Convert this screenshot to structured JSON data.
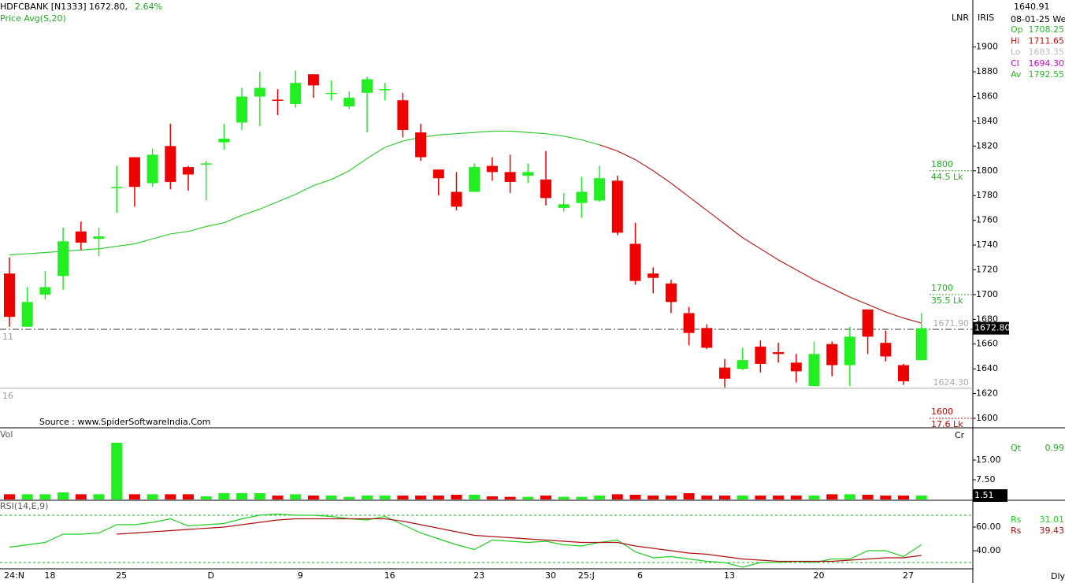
{
  "header": {
    "symbol": "HDFCBANK [N1333] 1672.80,",
    "change": "2.64%"
  },
  "toolbar": [
    "LNR",
    "IRIS"
  ],
  "info": {
    "price": "1640.91",
    "date": "08-01-25 We",
    "rows": [
      {
        "label": "Op",
        "value": "1708.25",
        "color": "#22bb22"
      },
      {
        "label": "Hi",
        "value": "1711.65",
        "color": "#bb1111"
      },
      {
        "label": "Lo",
        "value": "1683.35",
        "color": "#bbbbbb"
      },
      {
        "label": "Cl",
        "value": "1694.30",
        "color": "#cc00cc"
      },
      {
        "label": "Av",
        "value": "1792.55",
        "color": "#22bb22"
      }
    ]
  },
  "source": "Source : www.SpiderSoftwareIndia.Com",
  "interval": "Dly",
  "chart_data": [
    {
      "type": "candlestick",
      "categories": [
        "24:N",
        null,
        "18",
        null,
        null,
        null,
        "25",
        null,
        null,
        null,
        null,
        "D",
        null,
        null,
        null,
        null,
        "9",
        null,
        null,
        null,
        null,
        "16",
        null,
        null,
        null,
        null,
        "23",
        null,
        null,
        null,
        "30",
        null,
        "25:J",
        null,
        null,
        "6",
        null,
        null,
        null,
        null,
        "13",
        null,
        null,
        null,
        null,
        "20",
        null,
        null,
        null,
        null,
        "27",
        null
      ],
      "open": [
        1717,
        1674,
        1700,
        1715,
        1751,
        1745,
        1786,
        1811,
        1790,
        1820,
        1803,
        1805,
        1823,
        1839,
        1860,
        1857.5,
        1854,
        1878,
        1862,
        1852,
        1863,
        1865.6,
        1857,
        1831,
        1801,
        1783,
        1783,
        1804,
        1799,
        1796,
        1793,
        1770,
        1774,
        1776,
        1792,
        1741,
        1717,
        1709,
        1685,
        1673,
        1641,
        1640,
        1658,
        1653.5,
        1645,
        1626,
        1660,
        1643,
        1688,
        1661,
        1643,
        1647
      ],
      "high": [
        1730,
        1706,
        1719,
        1754,
        1759,
        1754,
        1804,
        1811,
        1818,
        1838,
        1804,
        1808,
        1838,
        1867,
        1880,
        1866,
        1881,
        1878,
        1873,
        1864,
        1876,
        1871,
        1863,
        1838,
        1801,
        1799,
        1806,
        1811,
        1813,
        1806,
        1816,
        1782,
        1795,
        1804,
        1796,
        1758,
        1722,
        1712,
        1690,
        1676,
        1648,
        1657,
        1663,
        1661,
        1652,
        1662,
        1662,
        1674,
        1688,
        1671,
        1644,
        1685
      ],
      "low": [
        1674,
        1674,
        1696,
        1704,
        1736,
        1731,
        1766,
        1771,
        1787,
        1785,
        1784,
        1776,
        1817,
        1833,
        1836,
        1845,
        1851,
        1859,
        1857,
        1850,
        1831,
        1857,
        1827,
        1808,
        1780,
        1768,
        1783,
        1792,
        1782,
        1790,
        1772,
        1767,
        1762,
        1775,
        1748,
        1708,
        1701,
        1685,
        1659,
        1656,
        1625,
        1639,
        1637,
        1645,
        1629,
        1626,
        1634,
        1626,
        1652,
        1646,
        1627,
        1647
      ],
      "close": [
        1682,
        1694,
        1706,
        1743,
        1742,
        1747,
        1787,
        1787,
        1813,
        1791,
        1797,
        1806,
        1826,
        1860,
        1867,
        1857,
        1871,
        1869,
        1863,
        1859,
        1874,
        1866,
        1833,
        1811,
        1794,
        1771,
        1803,
        1799,
        1791,
        1799,
        1778,
        1773,
        1783,
        1794,
        1750,
        1711,
        1713.5,
        1694,
        1669,
        1657,
        1632,
        1647,
        1644,
        1652,
        1638,
        1652,
        1643,
        1666,
        1666,
        1650,
        1630,
        1672.8
      ],
      "up_color": "#22ee22",
      "down_color": "#ee0000",
      "lines": [
        {
          "name": "Price  Avg(S,20)",
          "values": [
            1732,
            1733,
            1734,
            1735,
            1736,
            1737,
            1739,
            1741,
            1745,
            1749,
            1751,
            1755,
            1758,
            1764,
            1769,
            1775,
            1781,
            1788,
            1793,
            1800,
            1810,
            1819,
            1824,
            1827,
            1829,
            1830,
            1831,
            1832,
            1832,
            1831,
            1830,
            1828,
            1825,
            1821,
            1816,
            1809,
            1800,
            1790,
            1779,
            1768,
            1757,
            1746,
            1737,
            1728,
            1720,
            1712,
            1705,
            1698,
            1692,
            1686,
            1681,
            1677
          ],
          "colors": [
            "#33cc33",
            "#33cc33",
            "#33cc33",
            "#33cc33",
            "#33cc33",
            "#33cc33",
            "#33cc33",
            "#33cc33",
            "#33cc33",
            "#33cc33",
            "#33cc33",
            "#33cc33",
            "#33cc33",
            "#33cc33",
            "#33cc33",
            "#33cc33",
            "#33cc33",
            "#33cc33",
            "#33cc33",
            "#33cc33",
            "#33cc33",
            "#33cc33",
            "#33cc33",
            "#33cc33",
            "#33cc33",
            "#33cc33",
            "#33cc33",
            "#33cc33",
            "#33cc33",
            "#33cc33",
            "#33cc33",
            "#33cc33",
            "#33cc33",
            "#33cc33",
            "#bb2222",
            "#bb2222",
            "#bb2222",
            "#bb2222",
            "#bb2222",
            "#bb2222",
            "#bb2222",
            "#bb2222",
            "#bb2222",
            "#bb2222",
            "#bb2222",
            "#bb2222",
            "#bb2222",
            "#bb2222",
            "#bb2222",
            "#bb2222",
            "#bb2222",
            "#bb2222"
          ]
        }
      ],
      "ylim": [
        1593,
        1938
      ],
      "yticks": [
        1600,
        1620,
        1640,
        1660,
        1680,
        1700,
        1720,
        1740,
        1760,
        1780,
        1800,
        1820,
        1840,
        1860,
        1880,
        1900
      ],
      "levels": [
        {
          "value": 1800,
          "volume": "44.5 Lk",
          "color": "#22aa22"
        },
        {
          "value": 1700,
          "volume": "35.5 Lk",
          "color": "#22aa22"
        },
        {
          "value": 1600,
          "volume": "17.6 Lk",
          "color": "#cc0000"
        }
      ],
      "markers": [
        {
          "value": 1671.9,
          "label": "1671.90",
          "line_style": "dashdot"
        },
        {
          "value": 1624.3,
          "label": "1624.30",
          "line_style": "solid"
        }
      ],
      "last": {
        "value": 1672.8,
        "label": "1672.80"
      },
      "side_labels": [
        11,
        16
      ]
    },
    {
      "type": "bar",
      "label": "Vol",
      "unit": "Cr",
      "values": [
        2,
        2,
        2,
        2.7,
        2,
        2,
        21.6,
        2,
        2,
        2,
        2,
        1.2,
        2.4,
        2.4,
        2.4,
        1.5,
        2,
        1.5,
        1.5,
        1,
        1.5,
        1.5,
        1.5,
        1.5,
        1.5,
        1.8,
        1.8,
        1.2,
        1,
        1,
        1.5,
        1,
        1,
        1.5,
        2,
        1.8,
        1.5,
        1.5,
        2.4,
        1.5,
        1.5,
        1.5,
        1.5,
        1.5,
        1.5,
        1.5,
        2,
        2,
        1.8,
        1.5,
        1.5,
        1.51
      ],
      "ylim": [
        0,
        26.7
      ],
      "yticks": [
        {
          "value": 7.5,
          "label": "7.50"
        },
        {
          "value": 15,
          "label": "15.00"
        }
      ],
      "readout": {
        "label": "Qt",
        "value": 0.99
      }
    },
    {
      "type": "line",
      "title": "RSI(14,E,9)",
      "series": [
        {
          "name": "Rs",
          "color": "#22cc22",
          "values": [
            43,
            45,
            47,
            54,
            54,
            55,
            62,
            62,
            64,
            67,
            61,
            62,
            63,
            67,
            70,
            71,
            70,
            70,
            69,
            67,
            66,
            69,
            62,
            55,
            50,
            45,
            41,
            49,
            48,
            47,
            48,
            45,
            44,
            47,
            49,
            39,
            34,
            35,
            33,
            31,
            30,
            26,
            30,
            30,
            31,
            30,
            33,
            33,
            40,
            40,
            35,
            45
          ]
        },
        {
          "name": "Rs",
          "color": "#aa1111",
          "values": [
            null,
            null,
            null,
            null,
            null,
            null,
            54,
            55,
            56,
            57,
            58,
            59,
            60,
            62,
            64,
            66,
            67,
            67,
            67,
            67,
            67,
            67,
            65,
            62,
            59,
            56,
            53,
            52,
            51,
            50,
            49,
            48,
            47,
            47,
            47,
            44,
            42,
            40,
            38,
            37,
            35,
            33,
            32,
            31,
            31,
            31,
            31,
            32,
            33,
            34,
            34,
            36
          ]
        }
      ],
      "readout": [
        31.01,
        39.43
      ],
      "ylim": [
        24.7,
        82
      ],
      "yticks": [
        {
          "value": 40,
          "label": "40.00"
        },
        {
          "value": 60,
          "label": "60.00"
        }
      ],
      "levels": [
        70,
        30
      ]
    }
  ]
}
